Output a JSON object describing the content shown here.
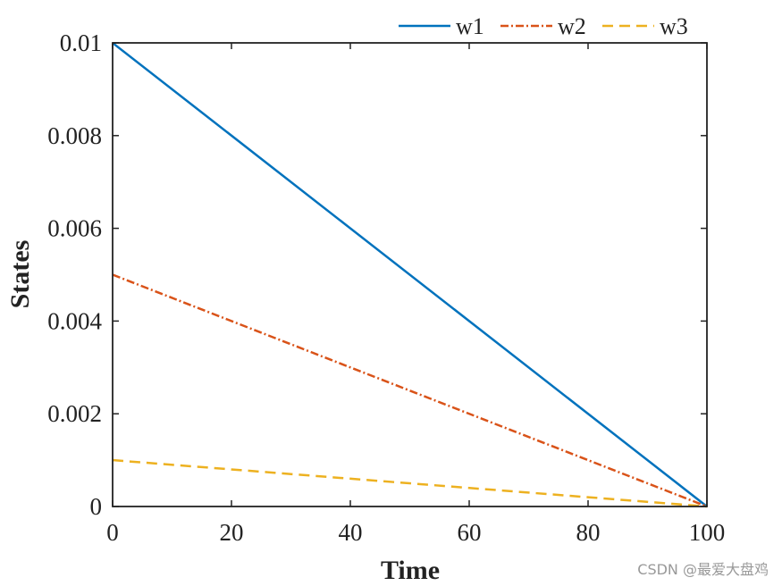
{
  "chart_data": {
    "type": "line",
    "xlabel": "Time",
    "ylabel": "States",
    "xlim": [
      0,
      100
    ],
    "ylim": [
      0,
      0.01
    ],
    "xticks": [
      0,
      20,
      40,
      60,
      80,
      100
    ],
    "yticks": [
      0,
      0.002,
      0.004,
      0.006,
      0.008,
      0.01
    ],
    "xtick_labels": [
      "0",
      "20",
      "40",
      "60",
      "80",
      "100"
    ],
    "ytick_labels": [
      "0",
      "0.002",
      "0.004",
      "0.006",
      "0.008",
      "0.01"
    ],
    "grid": false,
    "legend_position": "top-right, outside above axes",
    "series": [
      {
        "name": "w1",
        "color": "#0072BD",
        "style": "solid",
        "x": [
          0,
          100
        ],
        "y": [
          0.01,
          0
        ]
      },
      {
        "name": "w2",
        "color": "#D95319",
        "style": "dash-dot",
        "x": [
          0,
          100
        ],
        "y": [
          0.005,
          0
        ]
      },
      {
        "name": "w3",
        "color": "#EDB120",
        "style": "dashed",
        "x": [
          0,
          100
        ],
        "y": [
          0.001,
          0
        ]
      }
    ]
  },
  "watermark": "CSDN @最爱大盘鸡"
}
